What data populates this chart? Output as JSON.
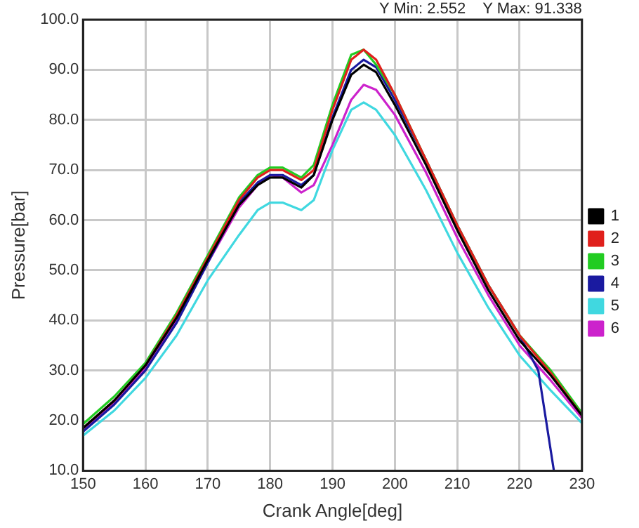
{
  "chart_data": {
    "type": "line",
    "xlabel": "Crank Angle[deg]",
    "ylabel": "Pressure[bar]",
    "annotations": [
      "Y Min: 2.552    Y Max: 91.338"
    ],
    "x": [
      150,
      155,
      160,
      165,
      170,
      175,
      178,
      180,
      182,
      185,
      187,
      190,
      193,
      195,
      197,
      200,
      205,
      210,
      215,
      220,
      225,
      230
    ],
    "xlim": [
      150,
      230
    ],
    "xticks": [
      150,
      160,
      170,
      180,
      190,
      200,
      210,
      220,
      230
    ],
    "ylim": [
      10,
      100
    ],
    "yticks": [
      {
        "value": 10,
        "label": "10.0"
      },
      {
        "value": 20,
        "label": "20.0"
      },
      {
        "value": 30,
        "label": "30.0"
      },
      {
        "value": 40,
        "label": "40.0"
      },
      {
        "value": 50,
        "label": "50.0"
      },
      {
        "value": 60,
        "label": "60.0"
      },
      {
        "value": 70,
        "label": "70.0"
      },
      {
        "value": 80,
        "label": "80.0"
      },
      {
        "value": 90,
        "label": "90.0"
      },
      {
        "value": 100,
        "label": "100.0"
      }
    ],
    "grid": true,
    "legend": "right",
    "marker": "none",
    "line_style": "solid",
    "series": [
      {
        "name": "1",
        "color": "#000000",
        "values": [
          18.5,
          24,
          31,
          40.5,
          52,
          63,
          67,
          68.5,
          68.5,
          66.5,
          69,
          80,
          89,
          91,
          89.5,
          83,
          71,
          58,
          46,
          36,
          29,
          21
        ]
      },
      {
        "name": "2",
        "color": "#e0201c",
        "values": [
          18.5,
          24,
          31,
          41,
          52.5,
          64,
          68.5,
          70,
          70,
          68,
          70,
          82,
          92,
          94,
          92,
          85,
          72,
          59,
          47,
          37,
          29.5,
          21
        ]
      },
      {
        "name": "3",
        "color": "#22cc22",
        "values": [
          19.3,
          24.8,
          31.5,
          41.5,
          53,
          64.5,
          69,
          70.5,
          70.5,
          68.5,
          71,
          83,
          93,
          94,
          91,
          85,
          72,
          59,
          47,
          37,
          30,
          21.5
        ]
      },
      {
        "name": "4",
        "color": "#1a1aa0",
        "x": [
          150,
          155,
          160,
          165,
          170,
          175,
          178,
          180,
          182,
          185,
          187,
          190,
          193,
          195,
          197,
          200,
          205,
          210,
          215,
          220,
          223,
          225.5
        ],
        "values": [
          17.8,
          23.2,
          30,
          39.5,
          51.5,
          63.5,
          67.5,
          69,
          69,
          67,
          69,
          80.5,
          90,
          92,
          90.5,
          84,
          72,
          59,
          47,
          37,
          30,
          10
        ]
      },
      {
        "name": "5",
        "color": "#40d8e0",
        "values": [
          17,
          22,
          28.5,
          37,
          48,
          57,
          62,
          63.5,
          63.5,
          62,
          64,
          74,
          82,
          83.5,
          82,
          77,
          66,
          53.5,
          42.5,
          33,
          26,
          19.5
        ]
      },
      {
        "name": "6",
        "color": "#cc22cc",
        "values": [
          18,
          23.5,
          30.5,
          40,
          51.5,
          62.5,
          67,
          69,
          68.5,
          65.5,
          67,
          75,
          84,
          87,
          86,
          81,
          69.5,
          56.5,
          45,
          35,
          28,
          20.5
        ]
      }
    ]
  }
}
